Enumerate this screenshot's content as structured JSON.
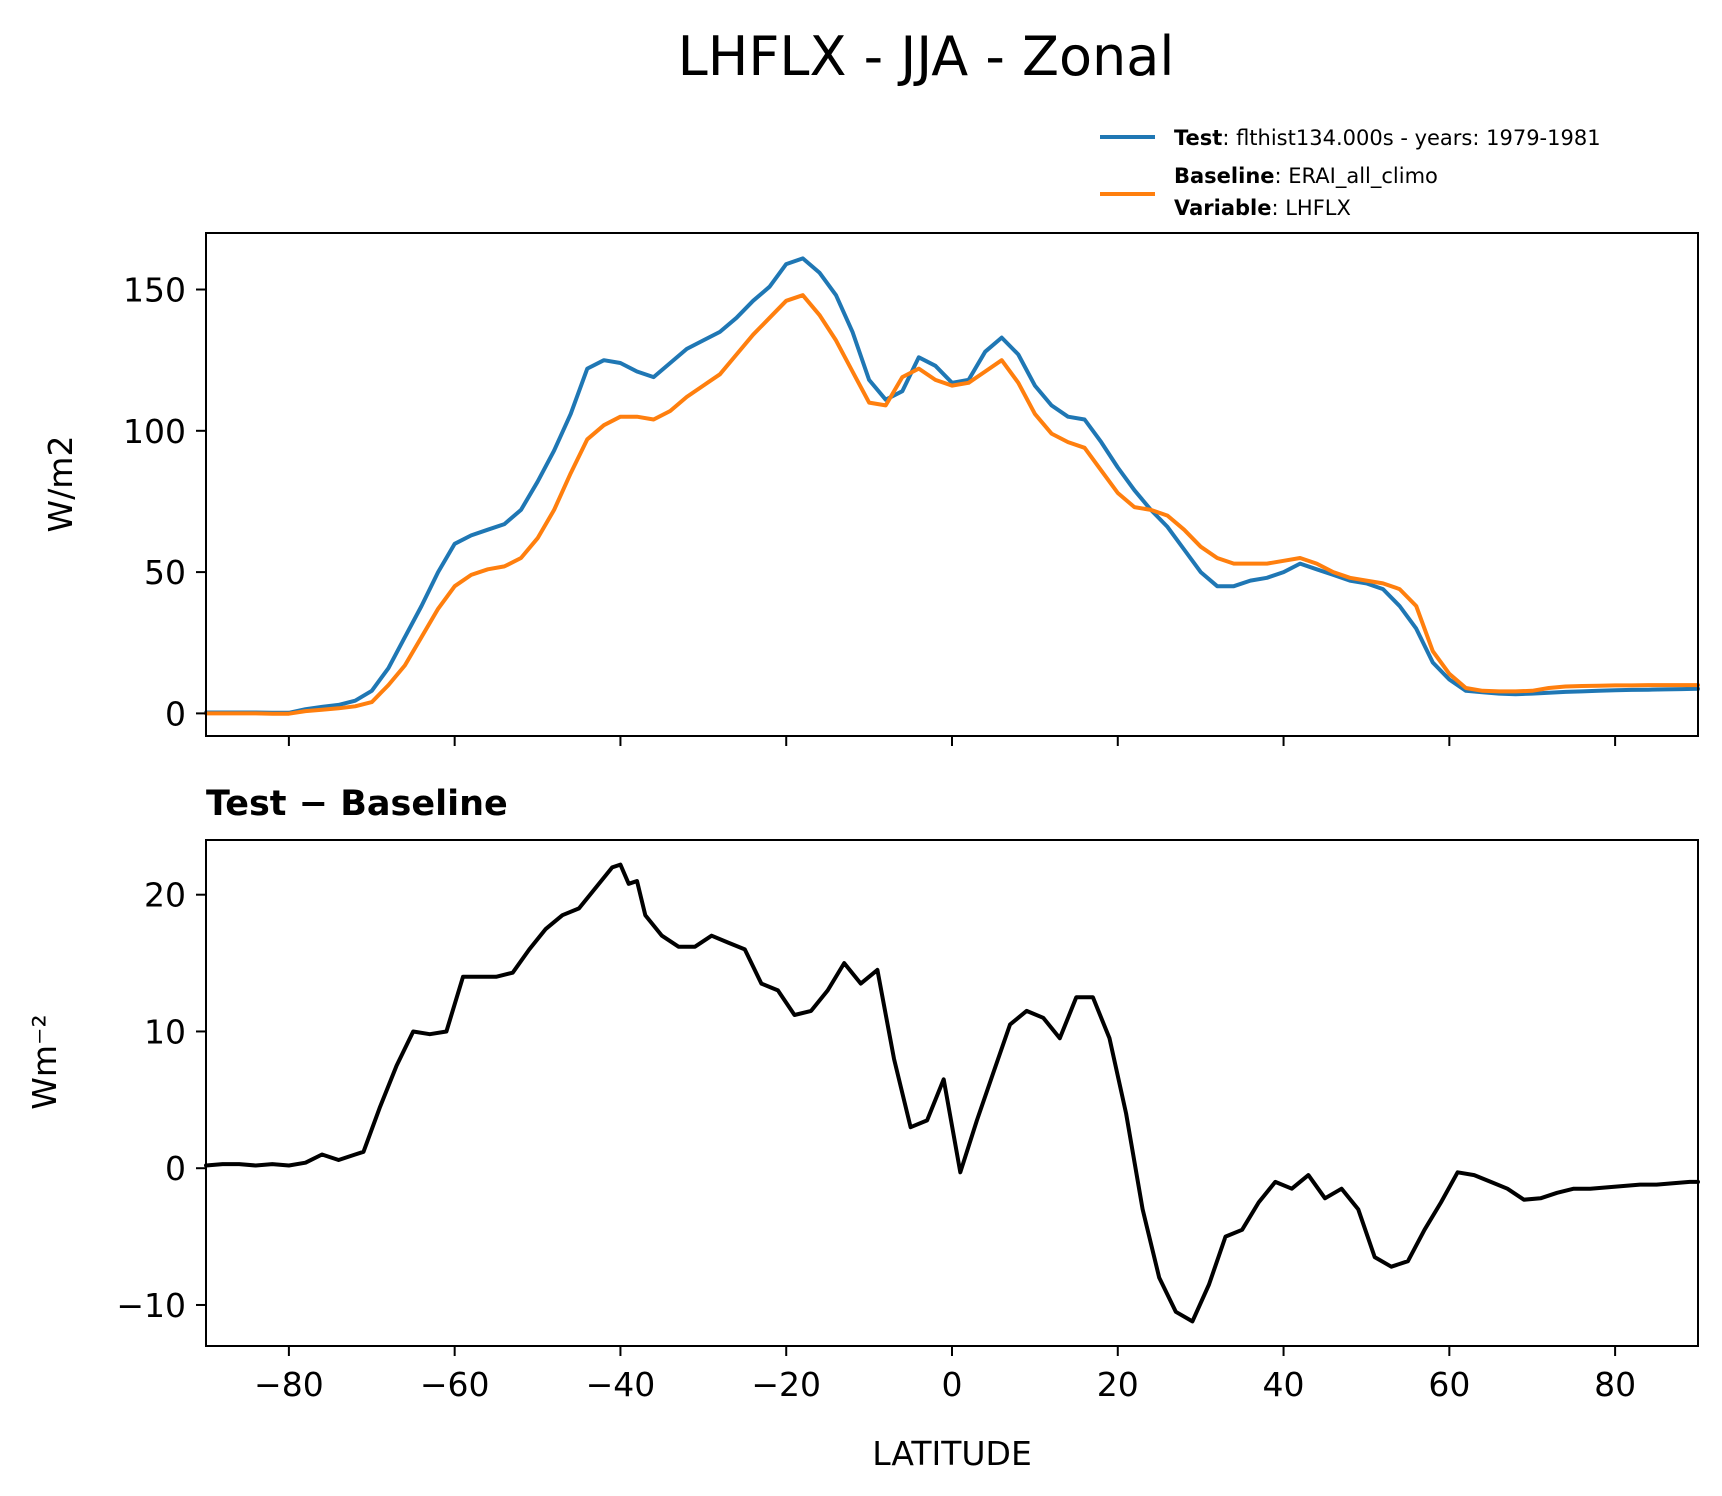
{
  "figure": {
    "title": "LHFLX - JJA - Zonal"
  },
  "legend": {
    "test": {
      "key": "Test",
      "text": ": flthist134.000s - years: 1979-1981",
      "color": "#1f77b4"
    },
    "baseline": {
      "key": "Baseline",
      "text": ": ERAI_all_climo",
      "color": "#ff7f0e"
    },
    "variable": {
      "key": "Variable",
      "text": ": LHFLX"
    }
  },
  "chart_data": [
    {
      "type": "line",
      "title": "",
      "xlabel": "",
      "ylabel": "W/m2",
      "xlim": [
        -90,
        90
      ],
      "ylim": [
        -8,
        170
      ],
      "yticks": [
        0,
        50,
        100,
        150
      ],
      "xticks": [
        -80,
        -60,
        -40,
        -20,
        0,
        20,
        40,
        60,
        80
      ],
      "xtick_labels_shown": false,
      "grid": false,
      "legend": "top-right, above the axes",
      "series": [
        {
          "name": "Test",
          "color": "#1f77b4",
          "x": [
            -90,
            -88,
            -86,
            -84,
            -82,
            -80,
            -78,
            -76,
            -74,
            -72,
            -70,
            -68,
            -66,
            -64,
            -62,
            -60,
            -58,
            -56,
            -54,
            -52,
            -50,
            -48,
            -46,
            -44,
            -42,
            -40,
            -38,
            -36,
            -34,
            -32,
            -30,
            -28,
            -26,
            -24,
            -22,
            -20,
            -18,
            -16,
            -14,
            -12,
            -10,
            -8,
            -6,
            -4,
            -2,
            0,
            2,
            4,
            6,
            8,
            10,
            12,
            14,
            16,
            18,
            20,
            22,
            24,
            26,
            28,
            30,
            32,
            34,
            36,
            38,
            40,
            42,
            44,
            46,
            48,
            50,
            52,
            54,
            56,
            58,
            60,
            62,
            64,
            66,
            68,
            70,
            72,
            74,
            76,
            78,
            80,
            82,
            84,
            86,
            88,
            90
          ],
          "values": [
            0.3,
            0.3,
            0.3,
            0.3,
            0.2,
            0.2,
            1.5,
            2.3,
            3.0,
            4.5,
            8.0,
            16.0,
            27.0,
            38.0,
            50.0,
            60.0,
            63.0,
            65.0,
            67.0,
            72.0,
            82.0,
            93.0,
            106.0,
            122.0,
            125.0,
            124.0,
            121.0,
            119.0,
            124.0,
            129.0,
            132.0,
            135.0,
            140.0,
            146.0,
            151.0,
            159.0,
            161.0,
            156.0,
            148.0,
            135.0,
            118.0,
            111.0,
            114.0,
            126.0,
            123.0,
            117.0,
            118.0,
            128.0,
            133.0,
            127.0,
            116.0,
            109.0,
            105.0,
            104.0,
            96.0,
            87.0,
            79.0,
            72.0,
            66.0,
            58.0,
            50.0,
            45.0,
            45.0,
            47.0,
            48.0,
            50.0,
            53.0,
            51.0,
            49.0,
            47.0,
            46.0,
            44.0,
            38.0,
            30.0,
            18.0,
            12.0,
            8.0,
            7.5,
            7.0,
            6.8,
            7.0,
            7.3,
            7.6,
            7.8,
            8.0,
            8.2,
            8.3,
            8.4,
            8.5,
            8.6,
            8.7
          ]
        },
        {
          "name": "Baseline",
          "color": "#ff7f0e",
          "x": [
            -90,
            -88,
            -86,
            -84,
            -82,
            -80,
            -78,
            -76,
            -74,
            -72,
            -70,
            -68,
            -66,
            -64,
            -62,
            -60,
            -58,
            -56,
            -54,
            -52,
            -50,
            -48,
            -46,
            -44,
            -42,
            -40,
            -38,
            -36,
            -34,
            -32,
            -30,
            -28,
            -26,
            -24,
            -22,
            -20,
            -18,
            -16,
            -14,
            -12,
            -10,
            -8,
            -6,
            -4,
            -2,
            0,
            2,
            4,
            6,
            8,
            10,
            12,
            14,
            16,
            18,
            20,
            22,
            24,
            26,
            28,
            30,
            32,
            34,
            36,
            38,
            40,
            42,
            44,
            46,
            48,
            50,
            52,
            54,
            56,
            58,
            60,
            62,
            64,
            66,
            68,
            70,
            72,
            74,
            76,
            78,
            80,
            82,
            84,
            86,
            88,
            90
          ],
          "values": [
            0.0,
            0.0,
            0.0,
            0.0,
            -0.1,
            -0.1,
            0.8,
            1.3,
            1.8,
            2.5,
            4.0,
            10.0,
            17.0,
            27.0,
            37.0,
            45.0,
            49.0,
            51.0,
            52.0,
            55.0,
            62.0,
            72.0,
            85.0,
            97.0,
            102.0,
            105.0,
            105.0,
            104.0,
            107.0,
            112.0,
            116.0,
            120.0,
            127.0,
            134.0,
            140.0,
            146.0,
            148.0,
            141.0,
            132.0,
            121.0,
            110.0,
            109.0,
            119.0,
            122.0,
            118.0,
            116.0,
            117.0,
            121.0,
            125.0,
            117.0,
            106.0,
            99.0,
            96.0,
            94.0,
            86.0,
            78.0,
            73.0,
            72.0,
            70.0,
            65.0,
            59.0,
            55.0,
            53.0,
            53.0,
            53.0,
            54.0,
            55.0,
            53.0,
            50.0,
            48.0,
            47.0,
            46.0,
            44.0,
            38.0,
            22.0,
            14.0,
            9.0,
            8.0,
            7.8,
            7.8,
            8.0,
            9.0,
            9.5,
            9.7,
            9.8,
            9.9,
            9.9,
            10.0,
            10.0,
            10.0,
            10.0
          ]
        }
      ]
    },
    {
      "type": "line",
      "title": "Test − Baseline",
      "xlabel": "LATITUDE",
      "ylabel": "Wm⁻²",
      "xlim": [
        -90,
        90
      ],
      "ylim": [
        -13,
        24
      ],
      "yticks": [
        -10,
        0,
        10,
        20
      ],
      "ytick_labels": [
        "−10",
        "0",
        "10",
        "20"
      ],
      "xticks": [
        -80,
        -60,
        -40,
        -20,
        0,
        20,
        40,
        60,
        80
      ],
      "xtick_labels": [
        "−80",
        "−60",
        "−40",
        "−20",
        "0",
        "20",
        "40",
        "60",
        "80"
      ],
      "grid": false,
      "series": [
        {
          "color": "#000000",
          "x": [
            -90,
            -88,
            -86,
            -84,
            -82,
            -80,
            -78,
            -76,
            -74,
            -72,
            -71,
            -69,
            -67,
            -65,
            -63,
            -61,
            -59,
            -57,
            -55,
            -53,
            -51,
            -49,
            -47,
            -45,
            -43,
            -41,
            -40,
            -39,
            -38,
            -37,
            -35,
            -33,
            -31,
            -29,
            -27,
            -25,
            -23,
            -21,
            -19,
            -17,
            -15,
            -13,
            -11,
            -9,
            -7,
            -5,
            -3,
            -1,
            1,
            3,
            5,
            7,
            9,
            11,
            13,
            15,
            17,
            19,
            21,
            23,
            25,
            27,
            29,
            31,
            33,
            35,
            37,
            39,
            41,
            43,
            45,
            47,
            49,
            51,
            53,
            55,
            57,
            59,
            61,
            63,
            65,
            67,
            69,
            71,
            73,
            75,
            77,
            79,
            81,
            83,
            85,
            87,
            89,
            90
          ],
          "values": [
            0.2,
            0.3,
            0.3,
            0.2,
            0.3,
            0.2,
            0.4,
            1.0,
            0.6,
            1.0,
            1.2,
            4.5,
            7.5,
            10.0,
            9.8,
            10.0,
            14.0,
            14.0,
            14.0,
            14.3,
            16.0,
            17.5,
            18.5,
            19.0,
            20.5,
            22.0,
            22.2,
            20.8,
            21.0,
            18.5,
            17.0,
            16.2,
            16.2,
            17.0,
            16.5,
            16.0,
            13.5,
            13.0,
            11.2,
            11.5,
            13.0,
            15.0,
            13.5,
            14.5,
            8.0,
            3.0,
            3.5,
            6.5,
            -0.3,
            3.5,
            7.0,
            10.5,
            11.5,
            11.0,
            9.5,
            12.5,
            12.5,
            9.5,
            4.0,
            -3.0,
            -8.0,
            -10.5,
            -11.2,
            -8.5,
            -5.0,
            -4.5,
            -2.5,
            -1.0,
            -1.5,
            -0.5,
            -2.2,
            -1.5,
            -3.0,
            -6.5,
            -7.2,
            -6.8,
            -4.5,
            -2.5,
            -0.3,
            -0.5,
            -1.0,
            -1.5,
            -2.3,
            -2.2,
            -1.8,
            -1.5,
            -1.5,
            -1.4,
            -1.3,
            -1.2,
            -1.2,
            -1.1,
            -1.0,
            -1.0
          ]
        }
      ]
    }
  ]
}
